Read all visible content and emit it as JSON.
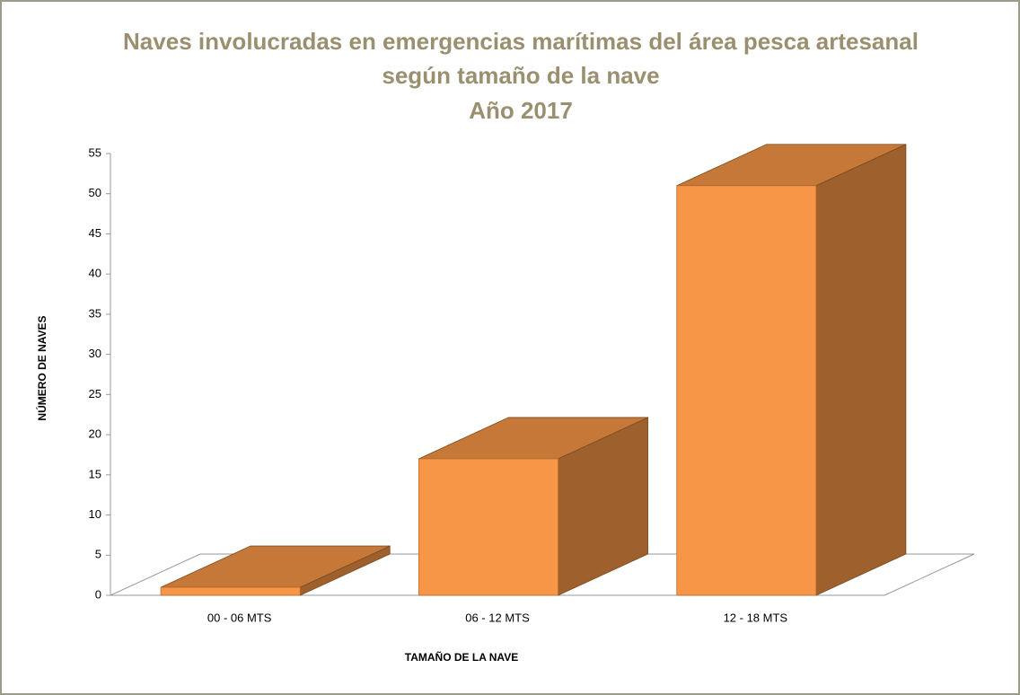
{
  "chart_data": {
    "type": "bar3d",
    "title": [
      "Naves involucradas en emergencias marítimas del área pesca artesanal",
      "según tamaño de la nave",
      "Año 2017"
    ],
    "x_label": "TAMAÑO DE LA NAVE",
    "y_label": "NÚMERO DE NAVES",
    "categories": [
      "00 - 06 MTS",
      "06 - 12 MTS",
      "12 - 18 MTS"
    ],
    "values": [
      1,
      17,
      51
    ],
    "color": "#f79646",
    "ylim": [
      0,
      55
    ],
    "yticks": [
      0,
      5,
      10,
      15,
      20,
      25,
      30,
      35,
      40,
      45,
      50,
      55
    ]
  }
}
